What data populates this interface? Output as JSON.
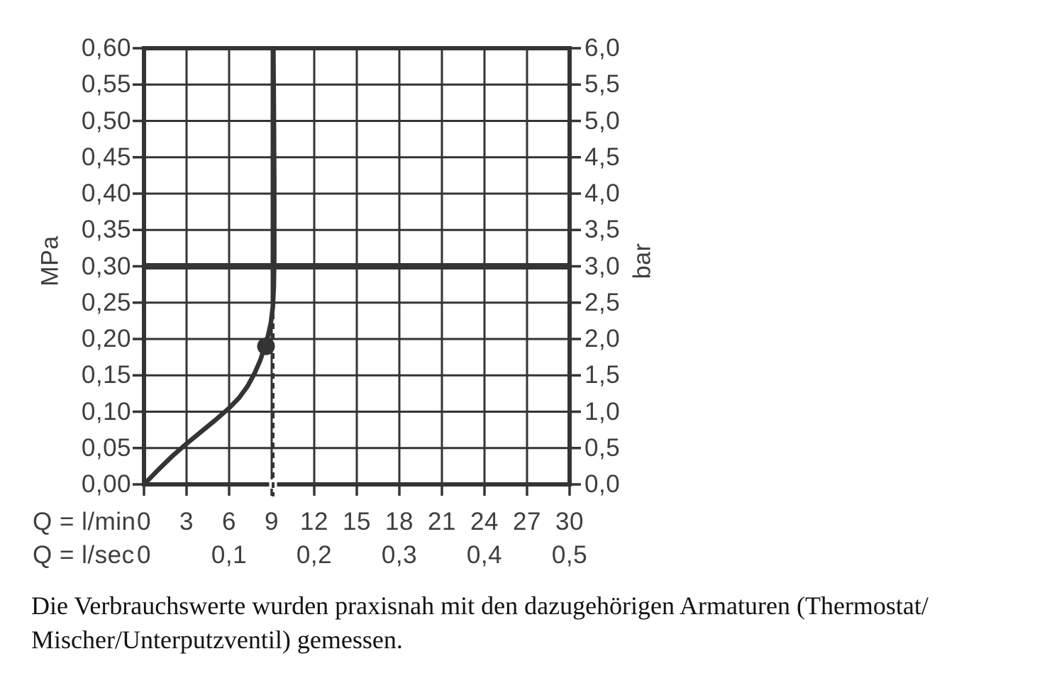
{
  "caption": {
    "line1": "Die Verbrauchswerte wurden praxisnah mit den dazugehörigen Armaturen (Thermostat/",
    "line2": "Mischer/Unterputzventil) gemessen."
  },
  "chart_data": {
    "type": "line",
    "title": "",
    "xlabel_row1": "Q = l/min",
    "xlabel_row2": "Q = l/sec",
    "y_left_unit": "MPa",
    "y_right_unit": "bar",
    "xlim": [
      0,
      30
    ],
    "ylim_mpa": [
      0.0,
      0.6
    ],
    "ylim_bar": [
      0.0,
      6.0
    ],
    "grid": {
      "x_step_lmin": 3,
      "y_step_mpa": 0.05,
      "on": true
    },
    "x_ticks_lmin": [
      {
        "v": 0,
        "label": "0"
      },
      {
        "v": 3,
        "label": "3"
      },
      {
        "v": 6,
        "label": "6"
      },
      {
        "v": 9,
        "label": "9"
      },
      {
        "v": 12,
        "label": "12"
      },
      {
        "v": 15,
        "label": "15"
      },
      {
        "v": 18,
        "label": "18"
      },
      {
        "v": 21,
        "label": "21"
      },
      {
        "v": 24,
        "label": "24"
      },
      {
        "v": 27,
        "label": "27"
      },
      {
        "v": 30,
        "label": "30"
      }
    ],
    "x_ticks_lsec": [
      {
        "v": 0,
        "label": "0"
      },
      {
        "v": 6,
        "label": "0,1"
      },
      {
        "v": 12,
        "label": "0,2"
      },
      {
        "v": 18,
        "label": "0,3"
      },
      {
        "v": 24,
        "label": "0,4"
      },
      {
        "v": 30,
        "label": "0,5"
      }
    ],
    "y_ticks_left_mpa": [
      {
        "v": 0.6,
        "label": "0,60"
      },
      {
        "v": 0.55,
        "label": "0,55"
      },
      {
        "v": 0.5,
        "label": "0,50"
      },
      {
        "v": 0.45,
        "label": "0,45"
      },
      {
        "v": 0.4,
        "label": "0,40"
      },
      {
        "v": 0.35,
        "label": "0,35"
      },
      {
        "v": 0.3,
        "label": "0,30"
      },
      {
        "v": 0.25,
        "label": "0,25"
      },
      {
        "v": 0.2,
        "label": "0,20"
      },
      {
        "v": 0.15,
        "label": "0,15"
      },
      {
        "v": 0.1,
        "label": "0,10"
      },
      {
        "v": 0.05,
        "label": "0,05"
      },
      {
        "v": 0.0,
        "label": "0,00"
      }
    ],
    "y_ticks_right_bar": [
      {
        "v": 0.6,
        "label": "6,0"
      },
      {
        "v": 0.55,
        "label": "5,5"
      },
      {
        "v": 0.5,
        "label": "5,0"
      },
      {
        "v": 0.45,
        "label": "4,5"
      },
      {
        "v": 0.4,
        "label": "4,0"
      },
      {
        "v": 0.35,
        "label": "3,5"
      },
      {
        "v": 0.3,
        "label": "3,0"
      },
      {
        "v": 0.25,
        "label": "2,5"
      },
      {
        "v": 0.2,
        "label": "2,0"
      },
      {
        "v": 0.15,
        "label": "1,5"
      },
      {
        "v": 0.1,
        "label": "1,0"
      },
      {
        "v": 0.05,
        "label": "0,5"
      },
      {
        "v": 0.0,
        "label": "0,0"
      }
    ],
    "reference_line_mpa": 0.3,
    "dashed_vline_lmin": 9.1,
    "marker_point": {
      "x_lmin": 8.6,
      "y_mpa": 0.19
    },
    "series": [
      {
        "name": "flow-pressure-curve",
        "points": [
          [
            0,
            0.0
          ],
          [
            1,
            0.02
          ],
          [
            2,
            0.039
          ],
          [
            3,
            0.056
          ],
          [
            4,
            0.072
          ],
          [
            5,
            0.088
          ],
          [
            6,
            0.105
          ],
          [
            6.7,
            0.119
          ],
          [
            7.3,
            0.135
          ],
          [
            7.8,
            0.153
          ],
          [
            8.2,
            0.171
          ],
          [
            8.5,
            0.189
          ],
          [
            8.75,
            0.205
          ],
          [
            8.95,
            0.223
          ],
          [
            9.08,
            0.244
          ],
          [
            9.15,
            0.272
          ],
          [
            9.18,
            0.31
          ],
          [
            9.18,
            0.42
          ],
          [
            9.15,
            0.52
          ],
          [
            9.12,
            0.6
          ]
        ]
      }
    ],
    "colors": {
      "line": "#343434",
      "text": "#3e3e3e",
      "caption_text": "#121212",
      "background": "#ffffff"
    }
  }
}
